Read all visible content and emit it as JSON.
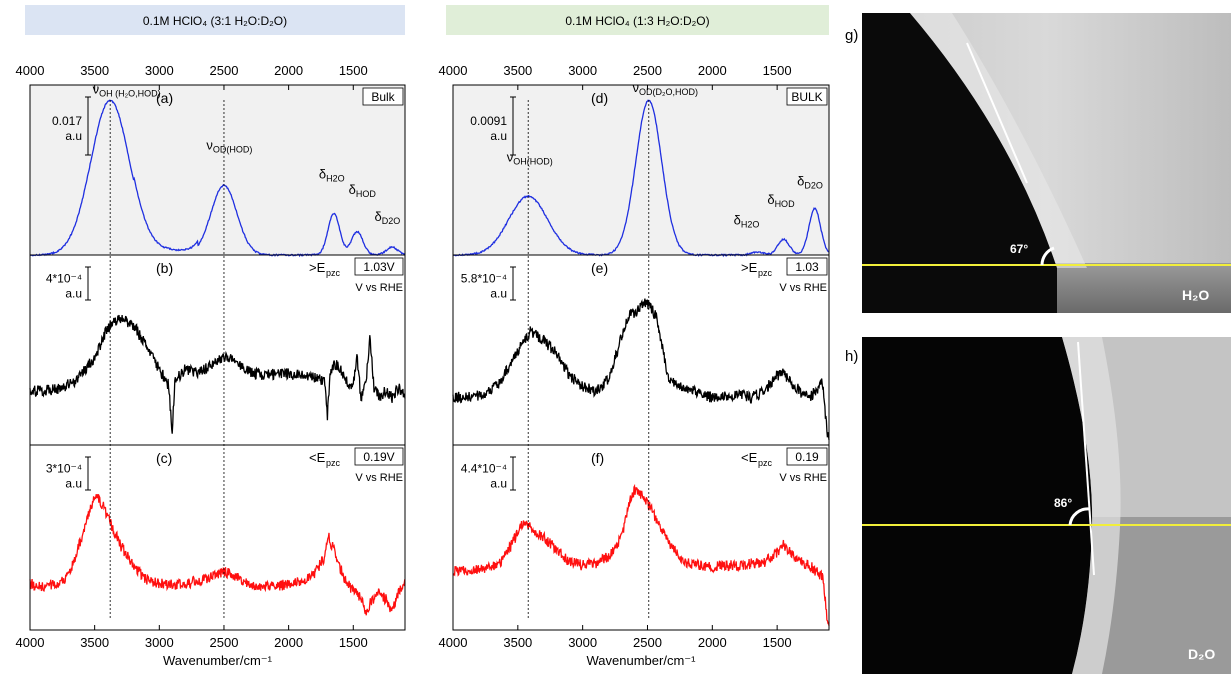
{
  "colors": {
    "blue": "#1f2fe0",
    "black": "#000000",
    "red": "#ff1010",
    "header_left_bg": "#dbe4f3",
    "header_right_bg": "#e0eed8",
    "bulk_bg": "#f1f1f1",
    "yellow_line": "#f1ee3a"
  },
  "chart_data": [
    {
      "type": "line",
      "header": "0.1M HClO₄ (3:1 H₂O:D₂O)",
      "xlabel": "Wavenumber/cm⁻¹",
      "xlim": [
        4000,
        1100
      ],
      "xticks": [
        4000,
        3500,
        3000,
        2500,
        2000,
        1500
      ],
      "guide_lines_x": [
        3380,
        2500
      ],
      "panels": [
        {
          "id": "(a)",
          "box": "Bulk",
          "color": "blue",
          "scale_value": "0.017",
          "scale_unit": "a.u",
          "ylim": [
            0,
            1.1
          ],
          "peak_labels": [
            {
              "sym": "ν",
              "sub": "OH (H₂O,HOD)",
              "x": 3400,
              "level": 0.95
            },
            {
              "sym": "ν",
              "sub": "OD(HOD)",
              "x": 2520,
              "level": 0.62
            },
            {
              "sym": "δ",
              "sub": "H2O",
              "x": 1650,
              "level": 0.45
            },
            {
              "sym": "δ",
              "sub": "HOD",
              "x": 1420,
              "level": 0.36
            },
            {
              "sym": "δ",
              "sub": "D2O",
              "x": 1220,
              "level": 0.2
            }
          ],
          "peaks": [
            {
              "x": 3380,
              "y": 1.0
            },
            {
              "x": 2500,
              "y": 0.45
            },
            {
              "x": 1650,
              "y": 0.27
            },
            {
              "x": 1470,
              "y": 0.15
            },
            {
              "x": 1200,
              "y": 0.05
            }
          ]
        },
        {
          "id": "(b)",
          "box": "1.03V",
          "potential": ">E",
          "potential_sub": "pzc",
          "ref": "V vs RHE",
          "color": "black",
          "scale_value": "4*10⁻⁴",
          "scale_unit": "a.u",
          "ylim": [
            0,
            1.2
          ],
          "points": [
            [
              4000,
              0.34
            ],
            [
              3800,
              0.35
            ],
            [
              3650,
              0.4
            ],
            [
              3500,
              0.55
            ],
            [
              3400,
              0.74
            ],
            [
              3300,
              0.8
            ],
            [
              3200,
              0.76
            ],
            [
              3100,
              0.62
            ],
            [
              3000,
              0.48
            ],
            [
              2930,
              0.38
            ],
            [
              2900,
              0.08
            ],
            [
              2880,
              0.4
            ],
            [
              2800,
              0.48
            ],
            [
              2700,
              0.46
            ],
            [
              2600,
              0.5
            ],
            [
              2500,
              0.56
            ],
            [
              2400,
              0.52
            ],
            [
              2300,
              0.46
            ],
            [
              2200,
              0.44
            ],
            [
              2100,
              0.45
            ],
            [
              2000,
              0.45
            ],
            [
              1900,
              0.44
            ],
            [
              1800,
              0.43
            ],
            [
              1720,
              0.4
            ],
            [
              1700,
              0.18
            ],
            [
              1680,
              0.42
            ],
            [
              1650,
              0.52
            ],
            [
              1600,
              0.48
            ],
            [
              1550,
              0.4
            ],
            [
              1500,
              0.38
            ],
            [
              1470,
              0.56
            ],
            [
              1440,
              0.28
            ],
            [
              1400,
              0.42
            ],
            [
              1370,
              0.68
            ],
            [
              1340,
              0.36
            ],
            [
              1300,
              0.3
            ],
            [
              1250,
              0.34
            ],
            [
              1200,
              0.3
            ],
            [
              1150,
              0.36
            ],
            [
              1100,
              0.32
            ]
          ]
        },
        {
          "id": "(c)",
          "box": "0.19V",
          "potential": "<E",
          "potential_sub": "pzc",
          "ref": "V vs RHE",
          "color": "red",
          "scale_value": "3*10⁻⁴",
          "scale_unit": "a.u",
          "ylim": [
            0,
            1.2
          ],
          "points": [
            [
              4000,
              0.3
            ],
            [
              3900,
              0.28
            ],
            [
              3800,
              0.3
            ],
            [
              3700,
              0.35
            ],
            [
              3600,
              0.6
            ],
            [
              3520,
              0.82
            ],
            [
              3480,
              0.87
            ],
            [
              3420,
              0.78
            ],
            [
              3350,
              0.64
            ],
            [
              3300,
              0.55
            ],
            [
              3200,
              0.42
            ],
            [
              3100,
              0.33
            ],
            [
              3000,
              0.3
            ],
            [
              2900,
              0.3
            ],
            [
              2800,
              0.3
            ],
            [
              2700,
              0.32
            ],
            [
              2600,
              0.34
            ],
            [
              2500,
              0.38
            ],
            [
              2400,
              0.34
            ],
            [
              2300,
              0.3
            ],
            [
              2200,
              0.28
            ],
            [
              2100,
              0.28
            ],
            [
              2000,
              0.3
            ],
            [
              1900,
              0.32
            ],
            [
              1800,
              0.36
            ],
            [
              1720,
              0.48
            ],
            [
              1690,
              0.6
            ],
            [
              1650,
              0.52
            ],
            [
              1600,
              0.4
            ],
            [
              1550,
              0.3
            ],
            [
              1500,
              0.26
            ],
            [
              1450,
              0.22
            ],
            [
              1400,
              0.12
            ],
            [
              1350,
              0.2
            ],
            [
              1300,
              0.24
            ],
            [
              1250,
              0.2
            ],
            [
              1200,
              0.12
            ],
            [
              1150,
              0.24
            ],
            [
              1100,
              0.3
            ]
          ]
        }
      ]
    },
    {
      "type": "line",
      "header": "0.1M HClO₄ (1:3 H₂O:D₂O)",
      "xlabel": "Wavenumber/cm⁻¹",
      "xlim": [
        4000,
        1100
      ],
      "xticks": [
        4000,
        3500,
        3000,
        2500,
        2000,
        1500
      ],
      "guide_lines_x": [
        3420,
        2490
      ],
      "panels": [
        {
          "id": "(d)",
          "box": "BULK",
          "color": "blue",
          "scale_value": "0.0091",
          "scale_unit": "a.u",
          "ylim": [
            0,
            1.1
          ],
          "peak_labels": [
            {
              "sym": "ν",
              "sub": "OH(HOD)",
              "x": 3470,
              "level": 0.55
            },
            {
              "sym": "ν",
              "sub": "OD(D₂O,HOD)",
              "x": 2500,
              "level": 0.96
            },
            {
              "sym": "δ",
              "sub": "H2O",
              "x": 1720,
              "level": 0.18
            },
            {
              "sym": "δ",
              "sub": "HOD",
              "x": 1460,
              "level": 0.3
            },
            {
              "sym": "δ",
              "sub": "D2O",
              "x": 1230,
              "level": 0.41
            }
          ],
          "peaks": [
            {
              "x": 3420,
              "y": 0.38
            },
            {
              "x": 2490,
              "y": 1.0
            },
            {
              "x": 1650,
              "y": 0.02
            },
            {
              "x": 1450,
              "y": 0.1
            },
            {
              "x": 1210,
              "y": 0.3
            }
          ]
        },
        {
          "id": "(e)",
          "box": "1.03",
          "potential": ">E",
          "potential_sub": "pzc",
          "ref": "V vs RHE",
          "color": "black",
          "scale_value": "5.8*10⁻⁴",
          "scale_unit": "a.u",
          "ylim": [
            0,
            1.2
          ],
          "points": [
            [
              4000,
              0.3
            ],
            [
              3800,
              0.31
            ],
            [
              3650,
              0.38
            ],
            [
              3550,
              0.52
            ],
            [
              3450,
              0.66
            ],
            [
              3400,
              0.72
            ],
            [
              3300,
              0.66
            ],
            [
              3200,
              0.58
            ],
            [
              3100,
              0.44
            ],
            [
              3000,
              0.37
            ],
            [
              2900,
              0.34
            ],
            [
              2800,
              0.42
            ],
            [
              2700,
              0.68
            ],
            [
              2650,
              0.82
            ],
            [
              2580,
              0.84
            ],
            [
              2520,
              0.9
            ],
            [
              2480,
              0.88
            ],
            [
              2430,
              0.8
            ],
            [
              2380,
              0.6
            ],
            [
              2350,
              0.44
            ],
            [
              2300,
              0.4
            ],
            [
              2200,
              0.36
            ],
            [
              2100,
              0.32
            ],
            [
              2000,
              0.3
            ],
            [
              1900,
              0.31
            ],
            [
              1800,
              0.32
            ],
            [
              1700,
              0.3
            ],
            [
              1600,
              0.34
            ],
            [
              1500,
              0.44
            ],
            [
              1450,
              0.46
            ],
            [
              1400,
              0.4
            ],
            [
              1300,
              0.32
            ],
            [
              1250,
              0.3
            ],
            [
              1200,
              0.34
            ],
            [
              1150,
              0.4
            ],
            [
              1130,
              0.2
            ],
            [
              1110,
              0.05
            ]
          ]
        },
        {
          "id": "(f)",
          "box": "0.19",
          "potential": "<E",
          "potential_sub": "pzc",
          "ref": "V vs RHE",
          "color": "red",
          "scale_value": "4.4*10⁻⁴",
          "scale_unit": "a.u",
          "ylim": [
            0,
            1.2
          ],
          "points": [
            [
              4000,
              0.38
            ],
            [
              3800,
              0.39
            ],
            [
              3650,
              0.42
            ],
            [
              3550,
              0.55
            ],
            [
              3470,
              0.68
            ],
            [
              3420,
              0.68
            ],
            [
              3380,
              0.64
            ],
            [
              3300,
              0.6
            ],
            [
              3200,
              0.52
            ],
            [
              3100,
              0.44
            ],
            [
              3000,
              0.42
            ],
            [
              2900,
              0.43
            ],
            [
              2800,
              0.48
            ],
            [
              2700,
              0.6
            ],
            [
              2630,
              0.85
            ],
            [
              2590,
              0.92
            ],
            [
              2550,
              0.88
            ],
            [
              2480,
              0.8
            ],
            [
              2400,
              0.66
            ],
            [
              2300,
              0.52
            ],
            [
              2200,
              0.44
            ],
            [
              2100,
              0.42
            ],
            [
              2000,
              0.41
            ],
            [
              1900,
              0.42
            ],
            [
              1800,
              0.42
            ],
            [
              1700,
              0.43
            ],
            [
              1600,
              0.44
            ],
            [
              1500,
              0.5
            ],
            [
              1450,
              0.56
            ],
            [
              1400,
              0.5
            ],
            [
              1300,
              0.44
            ],
            [
              1250,
              0.42
            ],
            [
              1200,
              0.38
            ],
            [
              1150,
              0.34
            ],
            [
              1130,
              0.2
            ],
            [
              1110,
              0.03
            ]
          ]
        }
      ]
    }
  ],
  "images": [
    {
      "label": "g)",
      "angle": "67°",
      "liquid": "H₂O"
    },
    {
      "label": "h)",
      "angle": "86°",
      "liquid": "D₂O"
    }
  ]
}
